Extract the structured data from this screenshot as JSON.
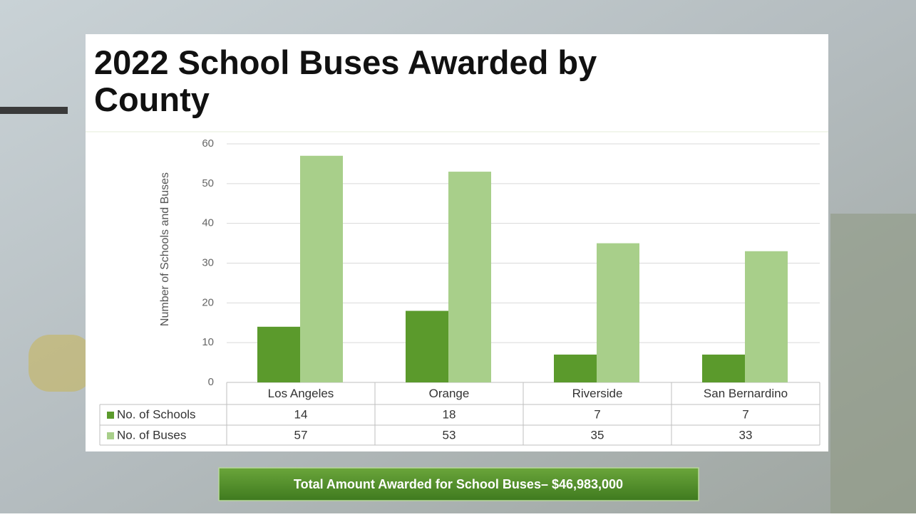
{
  "chart_data": {
    "type": "bar",
    "title": "2022 School Buses Awarded by County",
    "y_axis_label": "Number of Schools and Buses",
    "categories": [
      "Los Angeles",
      "Orange",
      "Riverside",
      "San Bernardino"
    ],
    "series": [
      {
        "name": "No. of Schools",
        "color": "#5b9a2c",
        "values": [
          14,
          18,
          7,
          7
        ]
      },
      {
        "name": "No. of Buses",
        "color": "#a8cf8a",
        "values": [
          57,
          53,
          35,
          33
        ]
      }
    ],
    "ylim": [
      0,
      60
    ],
    "yticks": [
      0,
      10,
      20,
      30,
      40,
      50,
      60
    ],
    "grid": true,
    "annotation": "Total Amount Awarded for School Buses– $46,983,000"
  }
}
